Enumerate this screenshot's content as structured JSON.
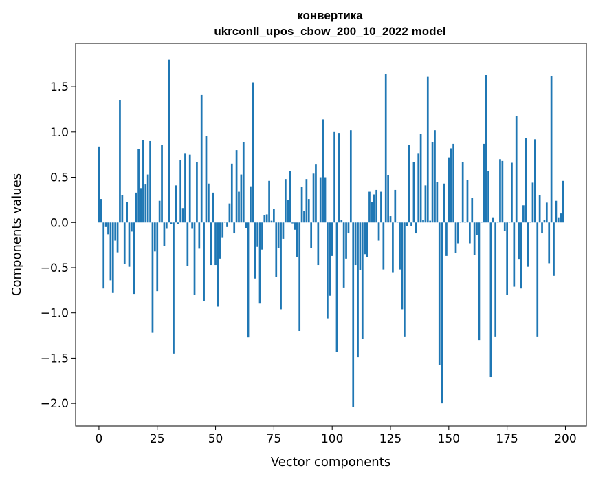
{
  "chart_data": {
    "type": "bar",
    "title": "конвертика",
    "subtitle": "ukrconll_upos_cbow_200_10_2022 model",
    "xlabel": "Vector components",
    "ylabel": "Components values",
    "bar_color": "#1f77b4",
    "xlim": [
      -10,
      209
    ],
    "ylim": [
      -2.25,
      1.98
    ],
    "x_ticks": [
      0,
      25,
      50,
      75,
      100,
      125,
      150,
      175,
      200
    ],
    "x_tick_labels": [
      "0",
      "25",
      "50",
      "75",
      "100",
      "125",
      "150",
      "175",
      "200"
    ],
    "y_ticks": [
      -2.0,
      -1.5,
      -1.0,
      -0.5,
      0.0,
      0.5,
      1.0,
      1.5
    ],
    "y_tick_labels": [
      "−2.0",
      "−1.5",
      "−1.0",
      "−0.5",
      "0.0",
      "0.5",
      "1.0",
      "1.5"
    ],
    "values": [
      0.84,
      0.26,
      -0.73,
      -0.05,
      -0.13,
      -0.64,
      -0.78,
      -0.2,
      -0.33,
      1.35,
      0.3,
      -0.46,
      0.23,
      -0.49,
      -0.1,
      -0.79,
      0.33,
      0.81,
      0.38,
      0.91,
      0.42,
      0.53,
      0.9,
      -1.22,
      -0.32,
      -0.76,
      0.24,
      0.86,
      -0.26,
      -0.07,
      1.8,
      -0.02,
      -1.45,
      0.41,
      -0.02,
      0.69,
      0.16,
      0.76,
      -0.48,
      0.75,
      -0.07,
      -0.8,
      0.67,
      -0.29,
      1.41,
      -0.87,
      0.96,
      0.43,
      -0.47,
      0.33,
      -0.47,
      -0.93,
      -0.4,
      -0.17,
      0.0,
      -0.05,
      0.21,
      0.65,
      -0.12,
      0.8,
      0.34,
      0.53,
      0.89,
      -0.06,
      -1.27,
      0.4,
      1.55,
      -0.62,
      -0.27,
      -0.89,
      -0.3,
      0.08,
      0.09,
      0.46,
      0.02,
      0.15,
      -0.6,
      -0.28,
      -0.96,
      -0.18,
      0.48,
      0.25,
      0.57,
      -0.01,
      -0.08,
      -0.38,
      -1.2,
      0.39,
      0.13,
      0.48,
      0.26,
      -0.28,
      0.54,
      0.64,
      -0.47,
      0.5,
      1.14,
      0.5,
      -1.06,
      -0.81,
      -0.37,
      1.0,
      -1.43,
      0.99,
      0.03,
      -0.72,
      -0.4,
      -0.12,
      1.02,
      -2.04,
      -0.47,
      -1.49,
      -0.53,
      -1.29,
      -0.35,
      -0.38,
      0.34,
      0.23,
      0.31,
      0.36,
      -0.2,
      0.34,
      -0.52,
      1.64,
      0.52,
      0.07,
      -0.55,
      0.36,
      0.0,
      -0.52,
      -0.96,
      -1.26,
      -0.04,
      0.86,
      -0.04,
      0.67,
      -0.12,
      0.76,
      0.98,
      0.03,
      0.41,
      1.61,
      0.02,
      0.89,
      1.02,
      0.45,
      -1.58,
      -2.0,
      0.43,
      -0.37,
      0.72,
      0.82,
      0.87,
      -0.34,
      -0.23,
      0.0,
      0.67,
      0.0,
      0.47,
      -0.23,
      0.27,
      -0.36,
      -0.14,
      -1.3,
      0.0,
      0.87,
      1.63,
      0.57,
      -1.71,
      0.05,
      -1.26,
      0.0,
      0.7,
      0.68,
      -0.09,
      -0.8,
      0.0,
      0.66,
      -0.71,
      1.18,
      -0.41,
      -0.73,
      0.19,
      0.93,
      -0.49,
      0.0,
      0.44,
      0.92,
      -1.26,
      0.3,
      -0.12,
      0.03,
      0.22,
      -0.45,
      1.62,
      -0.59,
      0.24,
      0.05,
      0.1,
      0.46
    ]
  }
}
